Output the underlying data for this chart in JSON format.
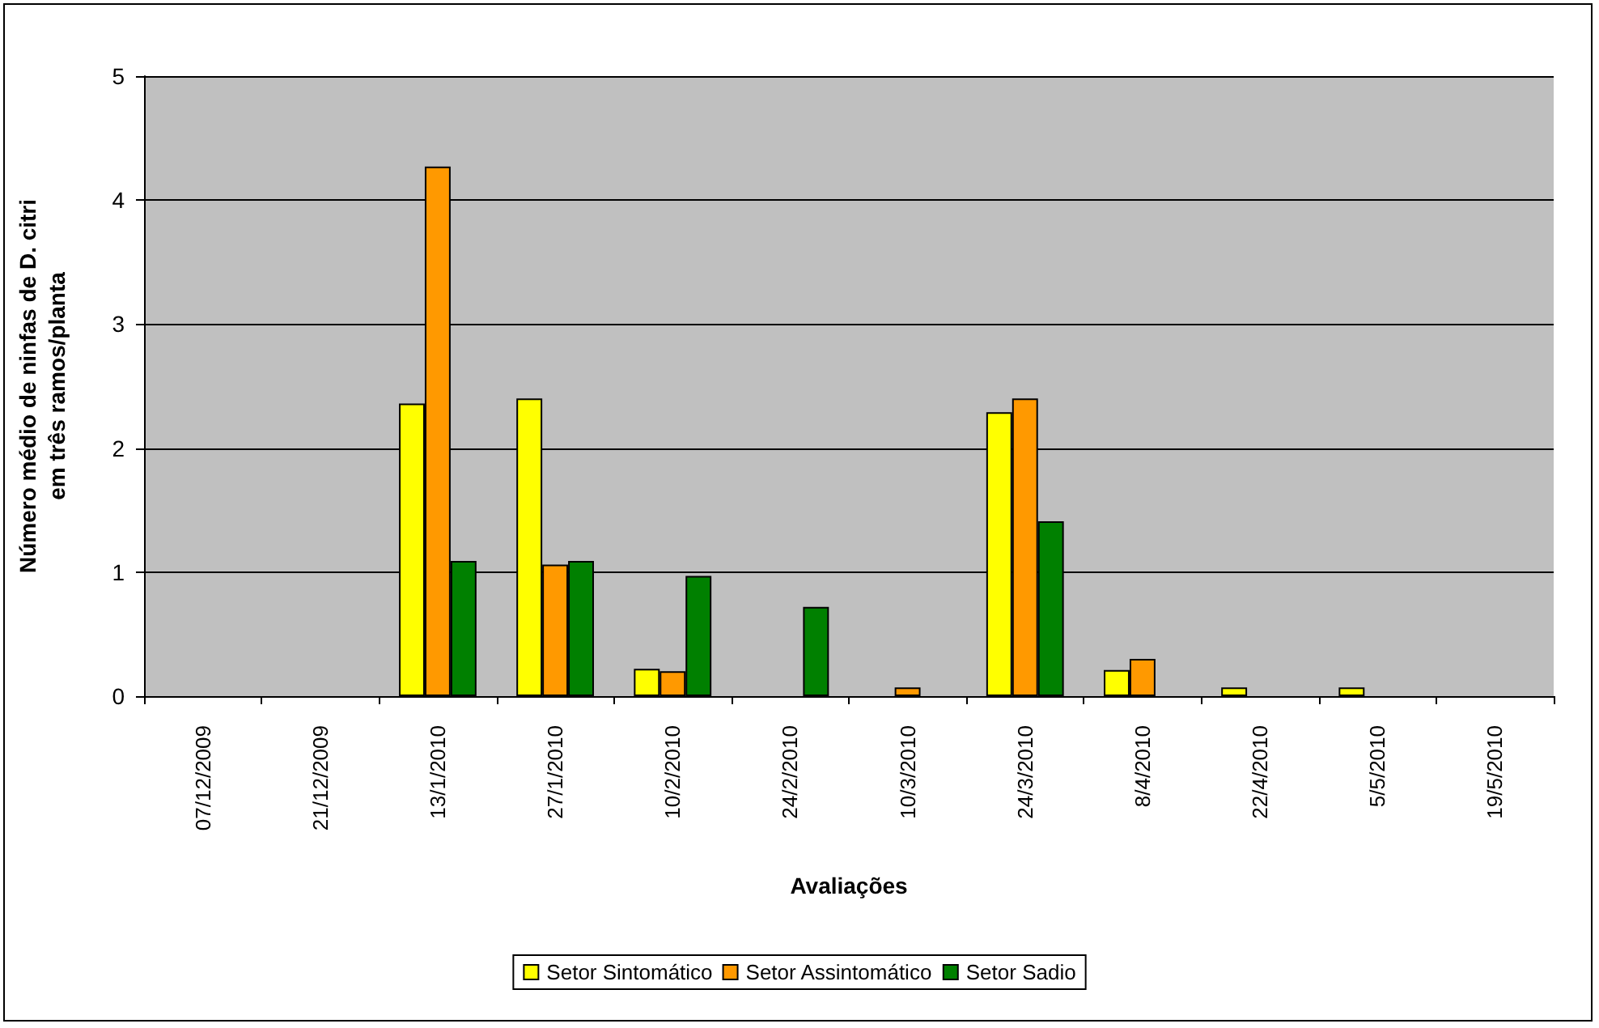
{
  "chart_data": {
    "type": "bar",
    "xlabel": "Avaliações",
    "ylabel": "Número médio de ninfas de D. citri\nem três ramos/planta",
    "categories": [
      "07/12/2009",
      "21/12/2009",
      "13/1/2010",
      "27/1/2010",
      "10/2/2010",
      "24/2/2010",
      "10/3/2010",
      "24/3/2010",
      "8/4/2010",
      "22/4/2010",
      "5/5/2010",
      "19/5/2010"
    ],
    "series": [
      {
        "name": "Setor Sintomático",
        "color": "#ffff00",
        "values": [
          null,
          null,
          2.36,
          2.4,
          0.22,
          null,
          null,
          2.29,
          0.21,
          0.07,
          0.07,
          null
        ]
      },
      {
        "name": "Setor Assintomático",
        "color": "#ff9900",
        "values": [
          null,
          null,
          4.27,
          1.06,
          0.2,
          null,
          0.07,
          2.4,
          0.3,
          null,
          null,
          null
        ]
      },
      {
        "name": "Setor Sadio",
        "color": "#008000",
        "values": [
          null,
          null,
          1.09,
          1.09,
          0.97,
          0.72,
          null,
          1.41,
          null,
          null,
          null,
          null
        ]
      }
    ],
    "ylim": [
      0,
      5
    ],
    "yticks": [
      0,
      1,
      2,
      3,
      4,
      5
    ],
    "grid": "y",
    "legend": "bottom"
  }
}
